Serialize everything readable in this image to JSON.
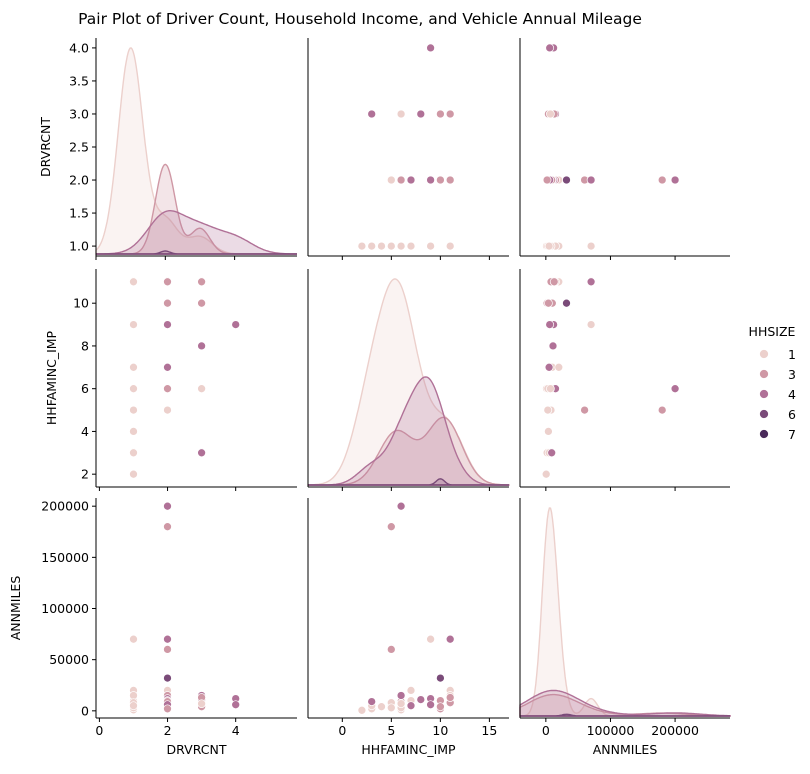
{
  "chart_data": {
    "type": "pairplot",
    "title": "Pair Plot of Driver Count, Household Income, and Vehicle Annual Mileage",
    "variables": [
      "DRVRCNT",
      "HHFAMINC_IMP",
      "ANNMILES"
    ],
    "legend": {
      "title": "HHSIZE",
      "placement": "right",
      "entries": [
        {
          "label": "1",
          "color": "#ecd0cc"
        },
        {
          "label": "3",
          "color": "#cf98a5"
        },
        {
          "label": "4",
          "color": "#b07197"
        },
        {
          "label": "6",
          "color": "#7a4b79"
        },
        {
          "label": "7",
          "color": "#4a2a5a"
        }
      ]
    },
    "axes": {
      "DRVRCNT": {
        "scatter_range": [
          -0.1,
          5.8
        ],
        "diag_range": [
          0,
          5.8
        ],
        "row_range": [
          0.85,
          4.15
        ],
        "x_ticks": [
          0,
          2,
          4
        ],
        "x_tick_labels": [
          "0",
          "2",
          "4"
        ],
        "y_ticks": [
          1.0,
          1.5,
          2.0,
          2.5,
          3.0,
          3.5,
          4.0
        ],
        "y_tick_labels": [
          "1.0",
          "1.5",
          "2.0",
          "2.5",
          "3.0",
          "3.5",
          "4.0"
        ]
      },
      "HHFAMINC_IMP": {
        "scatter_range": [
          -3.5,
          17
        ],
        "row_range": [
          1.4,
          11.6
        ],
        "x_ticks": [
          0,
          5,
          10,
          15
        ],
        "x_tick_labels": [
          "0",
          "5",
          "10",
          "15"
        ],
        "y_ticks": [
          2,
          4,
          6,
          8,
          10
        ],
        "y_tick_labels": [
          "2",
          "4",
          "6",
          "8",
          "10"
        ]
      },
      "ANNMILES": {
        "scatter_range": [
          -40000,
          285000
        ],
        "row_range": [
          -7000,
          208000
        ],
        "x_ticks": [
          0,
          100000,
          200000
        ],
        "x_tick_labels": [
          "0",
          "100000",
          "200000"
        ],
        "y_ticks": [
          0,
          50000,
          100000,
          150000,
          200000
        ],
        "y_tick_labels": [
          "0",
          "50000",
          "100000",
          "150000",
          "200000"
        ]
      }
    },
    "points": [
      {
        "DRVRCNT": 1,
        "HHFAMINC_IMP": 2,
        "ANNMILES": 500,
        "HHSIZE": 1
      },
      {
        "DRVRCNT": 1,
        "HHFAMINC_IMP": 3,
        "ANNMILES": 2000,
        "HHSIZE": 1
      },
      {
        "DRVRCNT": 1,
        "HHFAMINC_IMP": 4,
        "ANNMILES": 4000,
        "HHSIZE": 1
      },
      {
        "DRVRCNT": 1,
        "HHFAMINC_IMP": 5,
        "ANNMILES": 6000,
        "HHSIZE": 1
      },
      {
        "DRVRCNT": 1,
        "HHFAMINC_IMP": 6,
        "ANNMILES": 1000,
        "HHSIZE": 1
      },
      {
        "DRVRCNT": 1,
        "HHFAMINC_IMP": 7,
        "ANNMILES": 10000,
        "HHSIZE": 1
      },
      {
        "DRVRCNT": 1,
        "HHFAMINC_IMP": 9,
        "ANNMILES": 70000,
        "HHSIZE": 1
      },
      {
        "DRVRCNT": 1,
        "HHFAMINC_IMP": 11,
        "ANNMILES": 20000,
        "HHSIZE": 1
      },
      {
        "DRVRCNT": 1,
        "HHFAMINC_IMP": 11,
        "ANNMILES": 15000,
        "HHSIZE": 1
      },
      {
        "DRVRCNT": 1,
        "HHFAMINC_IMP": 6,
        "ANNMILES": 3000,
        "HHSIZE": 1
      },
      {
        "DRVRCNT": 1,
        "HHFAMINC_IMP": 5,
        "ANNMILES": 8000,
        "HHSIZE": 1
      },
      {
        "DRVRCNT": 1,
        "HHFAMINC_IMP": 3,
        "ANNMILES": 5000,
        "HHSIZE": 1
      },
      {
        "DRVRCNT": 2,
        "HHFAMINC_IMP": 5,
        "ANNMILES": 180000,
        "HHSIZE": 3
      },
      {
        "DRVRCNT": 2,
        "HHFAMINC_IMP": 5,
        "ANNMILES": 60000,
        "HHSIZE": 3
      },
      {
        "DRVRCNT": 2,
        "HHFAMINC_IMP": 6,
        "ANNMILES": 200000,
        "HHSIZE": 4
      },
      {
        "DRVRCNT": 2,
        "HHFAMINC_IMP": 11,
        "ANNMILES": 70000,
        "HHSIZE": 4
      },
      {
        "DRVRCNT": 2,
        "HHFAMINC_IMP": 7,
        "ANNMILES": 20000,
        "HHSIZE": 1
      },
      {
        "DRVRCNT": 2,
        "HHFAMINC_IMP": 6,
        "ANNMILES": 15000,
        "HHSIZE": 3
      },
      {
        "DRVRCNT": 2,
        "HHFAMINC_IMP": 10,
        "ANNMILES": 32000,
        "HHSIZE": 6
      },
      {
        "DRVRCNT": 2,
        "HHFAMINC_IMP": 9,
        "ANNMILES": 12000,
        "HHSIZE": 4
      },
      {
        "DRVRCNT": 2,
        "HHFAMINC_IMP": 10,
        "ANNMILES": 10000,
        "HHSIZE": 3
      },
      {
        "DRVRCNT": 2,
        "HHFAMINC_IMP": 11,
        "ANNMILES": 8000,
        "HHSIZE": 3
      },
      {
        "DRVRCNT": 2,
        "HHFAMINC_IMP": 7,
        "ANNMILES": 5000,
        "HHSIZE": 4
      },
      {
        "DRVRCNT": 2,
        "HHFAMINC_IMP": 5,
        "ANNMILES": 3000,
        "HHSIZE": 1
      },
      {
        "DRVRCNT": 2,
        "HHFAMINC_IMP": 6,
        "ANNMILES": 9000,
        "HHSIZE": 3
      },
      {
        "DRVRCNT": 2,
        "HHFAMINC_IMP": 9,
        "ANNMILES": 6000,
        "HHSIZE": 4
      },
      {
        "DRVRCNT": 2,
        "HHFAMINC_IMP": 10,
        "ANNMILES": 2000,
        "HHSIZE": 3
      },
      {
        "DRVRCNT": 3,
        "HHFAMINC_IMP": 3,
        "ANNMILES": 9000,
        "HHSIZE": 4
      },
      {
        "DRVRCNT": 3,
        "HHFAMINC_IMP": 6,
        "ANNMILES": 15000,
        "HHSIZE": 4
      },
      {
        "DRVRCNT": 3,
        "HHFAMINC_IMP": 8,
        "ANNMILES": 11000,
        "HHSIZE": 4
      },
      {
        "DRVRCNT": 3,
        "HHFAMINC_IMP": 10,
        "ANNMILES": 4000,
        "HHSIZE": 3
      },
      {
        "DRVRCNT": 3,
        "HHFAMINC_IMP": 11,
        "ANNMILES": 13000,
        "HHSIZE": 3
      },
      {
        "DRVRCNT": 3,
        "HHFAMINC_IMP": 6,
        "ANNMILES": 7000,
        "HHSIZE": 1
      },
      {
        "DRVRCNT": 4,
        "HHFAMINC_IMP": 9,
        "ANNMILES": 12000,
        "HHSIZE": 4
      },
      {
        "DRVRCNT": 4,
        "HHFAMINC_IMP": 9,
        "ANNMILES": 6000,
        "HHSIZE": 4
      }
    ]
  }
}
